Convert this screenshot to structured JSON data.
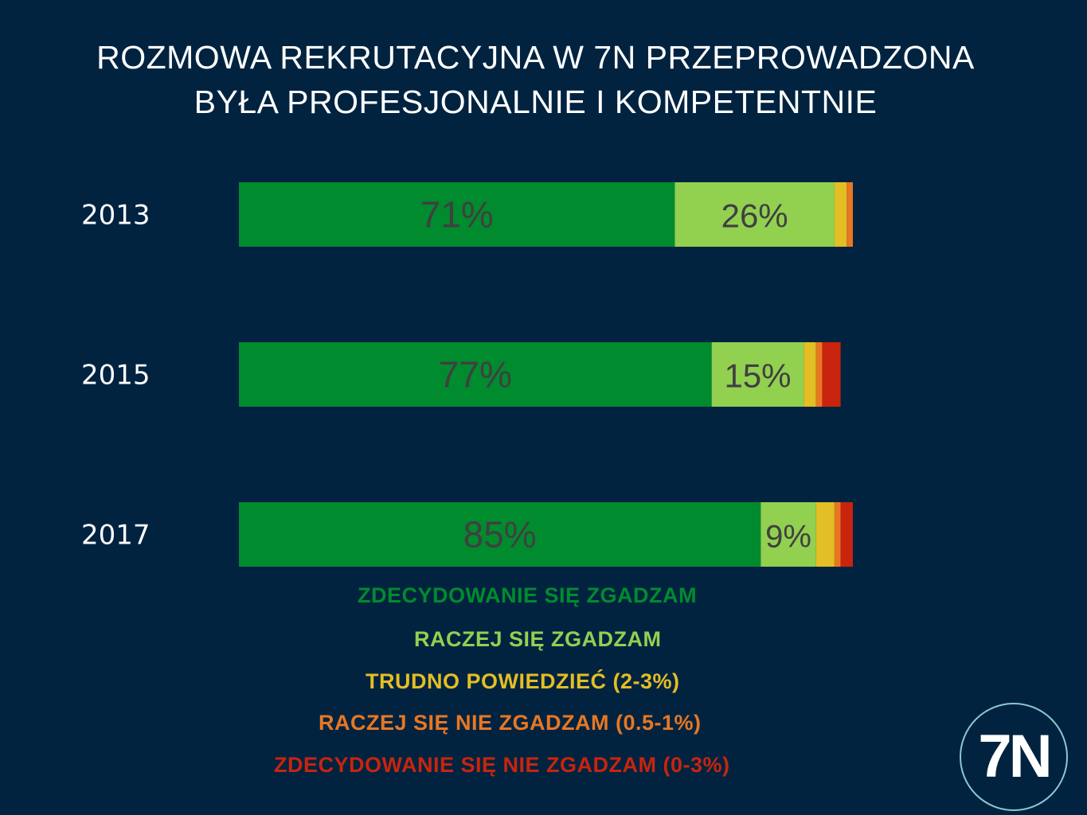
{
  "title": {
    "line1": "ROZMOWA REKRUTACYJNA W 7N PRZEPROWADZONA",
    "line2": "BYŁA PROFESJONALNIE I KOMPETENTNIE"
  },
  "colors": {
    "background": "#012340",
    "strongly_agree": "#008B2E",
    "agree": "#92D050",
    "neutral": "#E3BE24",
    "disagree": "#E87722",
    "strongly_disagree": "#C8240E"
  },
  "chart_data": {
    "type": "bar",
    "orientation": "horizontal",
    "stacked": true,
    "normalized_to": 100,
    "categories": [
      "2013",
      "2015",
      "2017"
    ],
    "series": [
      {
        "name": "ZDECYDOWANIE SIĘ ZGADZAM",
        "values": [
          71,
          77,
          85
        ],
        "labels": [
          "71%",
          "77%",
          "85%"
        ],
        "color": "#008B2E"
      },
      {
        "name": "RACZEJ SIĘ ZGADZAM",
        "values": [
          26,
          15,
          9
        ],
        "labels": [
          "26%",
          "15%",
          "9%"
        ],
        "color": "#92D050"
      },
      {
        "name": "TRUDNO POWIEDZIEĆ (2-3%)",
        "values": [
          2,
          2,
          3
        ],
        "labels": [
          "",
          "",
          ""
        ],
        "color": "#E3BE24"
      },
      {
        "name": "RACZEJ SIĘ NIE ZGADZAM (0.5-1%)",
        "values": [
          1,
          1,
          1
        ],
        "labels": [
          "",
          "",
          ""
        ],
        "color": "#E87722"
      },
      {
        "name": "ZDECYDOWANIE SIĘ NIE ZGADZAM (0-3%)",
        "values": [
          0,
          3,
          2
        ],
        "labels": [
          "",
          "",
          ""
        ],
        "color": "#C8240E"
      }
    ],
    "legend_position": "bottom",
    "grid": false
  },
  "logo": {
    "text": "7N"
  }
}
